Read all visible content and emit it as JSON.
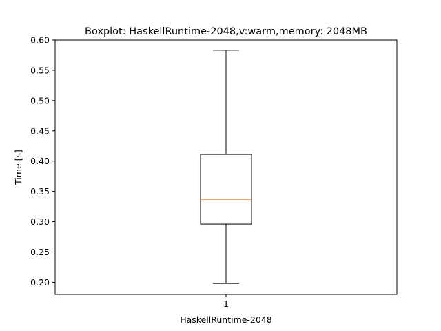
{
  "chart_data": {
    "type": "boxplot",
    "title": "Boxplot: HaskellRuntime-2048,v:warm,memory: 2048MB",
    "xlabel": "HaskellRuntime-2048",
    "ylabel": "Time [s]",
    "categories": [
      "1"
    ],
    "boxes": [
      {
        "label": "1",
        "whisker_low": 0.198,
        "q1": 0.296,
        "median": 0.337,
        "q3": 0.411,
        "whisker_high": 0.583
      }
    ],
    "ylim": [
      0.18,
      0.6
    ],
    "yticks": [
      0.2,
      0.25,
      0.3,
      0.35,
      0.4,
      0.45,
      0.5,
      0.55,
      0.6
    ],
    "ytick_labels": [
      "0.20",
      "0.25",
      "0.30",
      "0.35",
      "0.40",
      "0.45",
      "0.50",
      "0.55",
      "0.60"
    ],
    "grid": false,
    "colors": {
      "box": "#000000",
      "median": "#ff7f0e",
      "background": "#ffffff"
    }
  }
}
